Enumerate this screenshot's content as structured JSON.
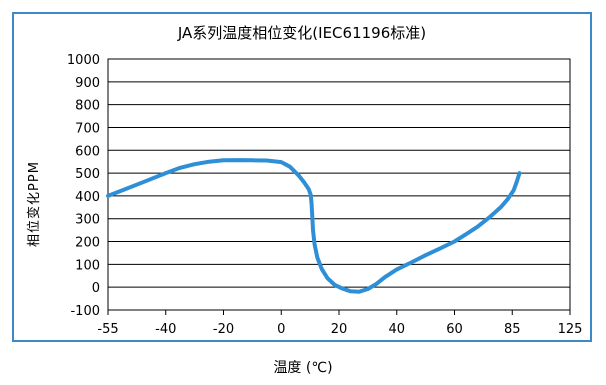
{
  "chart_data": {
    "type": "line",
    "title": "JA系列温度相位变化(IEC61196标准)",
    "xlabel": "温度 (℃)",
    "ylabel": "相位变化PPM",
    "x_ticks": [
      "-55",
      "-40",
      "-20",
      "0",
      "20",
      "40",
      "60",
      "85",
      "125"
    ],
    "y_ticks": [
      "1000",
      "900",
      "800",
      "700",
      "600",
      "500",
      "400",
      "300",
      "200",
      "100",
      "0",
      "-100"
    ],
    "ylim": [
      -100,
      1000
    ],
    "grid": true,
    "line_color": "#2e8fd6",
    "frame_color": "#3b89c9",
    "series": [
      {
        "x": [
          -55,
          -50,
          -45,
          -40,
          -35,
          -30,
          -25,
          -20,
          -15,
          -10,
          -5,
          0,
          3,
          6,
          8,
          9.5,
          10.2,
          10.5,
          10.8,
          11,
          11.5,
          12.5,
          14,
          16,
          18.5,
          21,
          24,
          27,
          30,
          33,
          36,
          40,
          45,
          50,
          55,
          60,
          65,
          70,
          75,
          80,
          83,
          86,
          88,
          90
        ],
        "y": [
          400,
          433,
          466,
          500,
          523,
          539,
          550,
          556,
          557,
          556,
          555,
          548,
          528,
          490,
          458,
          430,
          405,
          365,
          300,
          250,
          190,
          130,
          80,
          40,
          10,
          -5,
          -18,
          -20,
          -8,
          15,
          45,
          78,
          108,
          140,
          170,
          200,
          232,
          265,
          305,
          350,
          385,
          425,
          460,
          500
        ]
      }
    ]
  }
}
